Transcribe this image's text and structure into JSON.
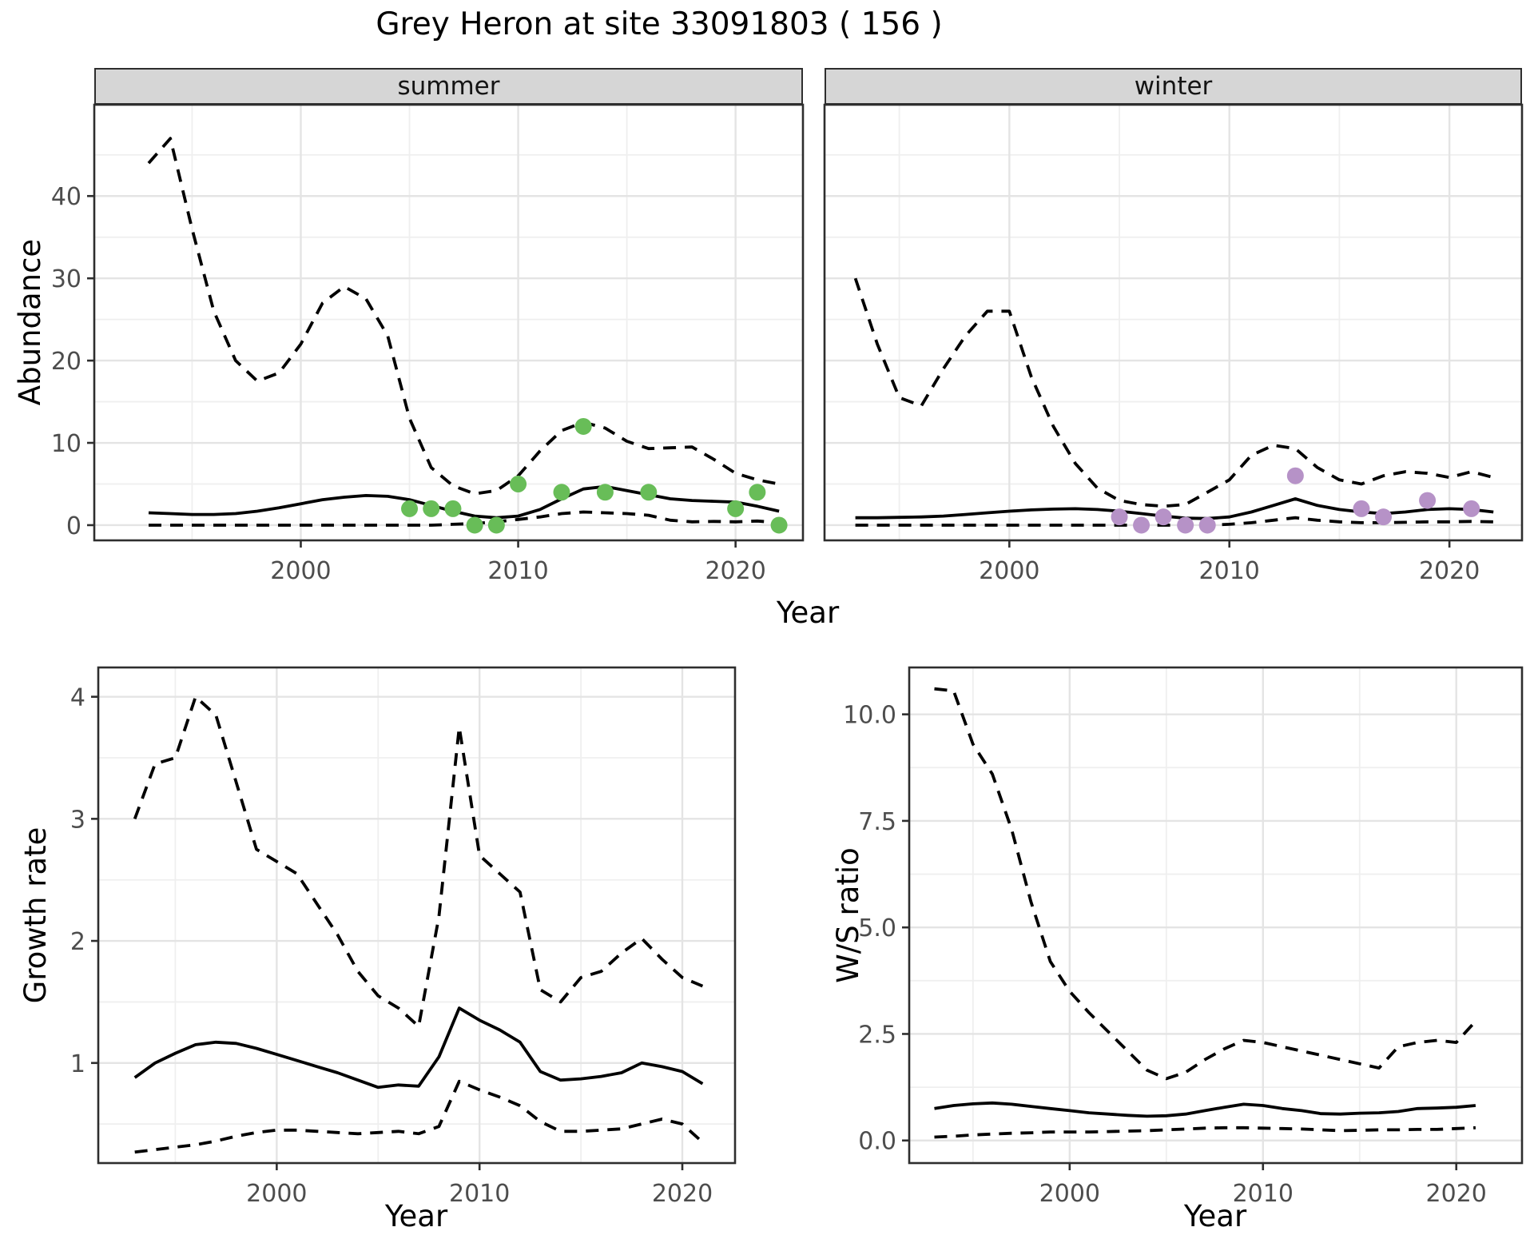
{
  "title": "Grey Heron at site 33091803 ( 156 )",
  "colors": {
    "summer_points": "#68bd58",
    "winter_points": "#b692c7",
    "line": "#000000",
    "grid_major": "#e4e4e4",
    "grid_minor": "#efefef",
    "panel_border": "#2e2e2e",
    "strip_bg": "#d6d6d6",
    "tick_text": "#4d4d4d"
  },
  "chart_data": [
    {
      "type": "line",
      "panel": "abundance-summer",
      "facet": "summer",
      "ylabel": "Abundance",
      "xlabel": "Year",
      "x": [
        1993,
        1994,
        1995,
        1996,
        1997,
        1998,
        1999,
        2000,
        2001,
        2002,
        2003,
        2004,
        2005,
        2006,
        2007,
        2008,
        2009,
        2010,
        2011,
        2012,
        2013,
        2014,
        2015,
        2016,
        2017,
        2018,
        2019,
        2020,
        2021,
        2022
      ],
      "series": [
        {
          "name": "upper-ci",
          "style": "dashed",
          "values": [
            44,
            47,
            36,
            26,
            20,
            17.5,
            18.5,
            22,
            27,
            29,
            27.5,
            23,
            13,
            7,
            4.8,
            3.8,
            4.2,
            6,
            9,
            11.5,
            12.5,
            11.8,
            10.2,
            9.3,
            9.4,
            9.5,
            8,
            6.3,
            5.5,
            5
          ]
        },
        {
          "name": "fit",
          "style": "solid",
          "values": [
            1.5,
            1.4,
            1.3,
            1.3,
            1.4,
            1.7,
            2.1,
            2.6,
            3.1,
            3.4,
            3.6,
            3.5,
            3.1,
            2.4,
            1.7,
            1.1,
            0.9,
            1.1,
            1.9,
            3.2,
            4.4,
            4.7,
            4.2,
            3.7,
            3.2,
            3.0,
            2.9,
            2.8,
            2.3,
            1.7
          ]
        },
        {
          "name": "lower-ci",
          "style": "dashed",
          "values": [
            0,
            0,
            0,
            0,
            0,
            0,
            0,
            0,
            0,
            0,
            0,
            0,
            0,
            0,
            0.1,
            0.2,
            0.4,
            0.7,
            1.0,
            1.4,
            1.6,
            1.5,
            1.4,
            1.2,
            0.6,
            0.4,
            0.45,
            0.4,
            0.5,
            0.3
          ]
        }
      ],
      "points": {
        "name": "observed-counts",
        "color_key": "summer_points",
        "x": [
          2005,
          2006,
          2007,
          2008,
          2009,
          2010,
          2012,
          2013,
          2014,
          2016,
          2020,
          2021,
          2022
        ],
        "y": [
          2,
          2,
          2,
          0,
          0,
          5,
          4,
          12,
          4,
          4,
          2,
          4,
          0
        ]
      },
      "xlim": [
        1990.5,
        2023.1
      ],
      "ylim": [
        -1.85,
        51.1
      ],
      "x_ticks": {
        "values": [
          2000,
          2010,
          2020
        ],
        "labels": [
          "2000",
          "2010",
          "2020"
        ]
      },
      "x_minor": [
        1995,
        2005,
        2015
      ],
      "y_ticks": {
        "values": [
          0,
          10,
          20,
          30,
          40
        ],
        "labels": [
          "0",
          "10",
          "20",
          "30",
          "40"
        ]
      },
      "y_minor": [
        5,
        15,
        25,
        35,
        45
      ]
    },
    {
      "type": "line",
      "panel": "abundance-winter",
      "facet": "winter",
      "ylabel": "Abundance",
      "xlabel": "Year",
      "x": [
        1993,
        1994,
        1995,
        1996,
        1997,
        1998,
        1999,
        2000,
        2001,
        2002,
        2003,
        2004,
        2005,
        2006,
        2007,
        2008,
        2009,
        2010,
        2011,
        2012,
        2013,
        2014,
        2015,
        2016,
        2017,
        2018,
        2019,
        2020,
        2021,
        2022
      ],
      "series": [
        {
          "name": "upper-ci",
          "style": "dashed",
          "values": [
            30,
            22,
            15.5,
            14.5,
            19,
            23,
            26,
            26,
            18,
            12,
            7.5,
            4.5,
            3,
            2.5,
            2.3,
            2.5,
            4,
            5.5,
            8.5,
            9.7,
            9.3,
            7,
            5.5,
            5,
            6,
            6.5,
            6.3,
            5.8,
            6.5,
            5.8
          ]
        },
        {
          "name": "fit",
          "style": "solid",
          "values": [
            0.9,
            0.9,
            0.95,
            1.0,
            1.1,
            1.3,
            1.5,
            1.7,
            1.85,
            1.95,
            2.0,
            1.9,
            1.7,
            1.4,
            1.1,
            0.85,
            0.8,
            1.0,
            1.6,
            2.4,
            3.2,
            2.4,
            1.9,
            1.6,
            1.4,
            1.6,
            1.9,
            2.0,
            1.9,
            1.6
          ]
        },
        {
          "name": "lower-ci",
          "style": "dashed",
          "values": [
            0,
            0,
            0,
            0,
            0,
            0,
            0,
            0,
            0,
            0,
            0,
            0,
            0,
            0,
            0,
            0,
            0,
            0.1,
            0.3,
            0.6,
            0.9,
            0.6,
            0.4,
            0.3,
            0.3,
            0.35,
            0.4,
            0.4,
            0.45,
            0.4
          ]
        }
      ],
      "points": {
        "name": "observed-counts",
        "color_key": "winter_points",
        "x": [
          2005,
          2006,
          2007,
          2008,
          2009,
          2013,
          2016,
          2017,
          2019,
          2021
        ],
        "y": [
          1,
          0,
          1,
          0,
          0,
          6,
          2,
          1,
          3,
          2
        ]
      },
      "xlim": [
        1991.6,
        2023.3
      ],
      "ylim": [
        -1.85,
        51.1
      ],
      "x_ticks": {
        "values": [
          2000,
          2010,
          2020
        ],
        "labels": [
          "2000",
          "2010",
          "2020"
        ]
      },
      "x_minor": [
        1995,
        2005,
        2015
      ],
      "y_ticks": {
        "values": [
          0,
          10,
          20,
          30,
          40
        ],
        "labels": [
          "0",
          "10",
          "20",
          "30",
          "40"
        ]
      },
      "y_minor": [
        5,
        15,
        25,
        35,
        45
      ]
    },
    {
      "type": "line",
      "panel": "growth-rate",
      "facet": "",
      "ylabel": "Growth rate",
      "xlabel": "Year",
      "x": [
        1993,
        1994,
        1995,
        1996,
        1997,
        1998,
        1999,
        2000,
        2001,
        2002,
        2003,
        2004,
        2005,
        2006,
        2007,
        2008,
        2009,
        2010,
        2011,
        2012,
        2013,
        2014,
        2015,
        2016,
        2017,
        2018,
        2019,
        2020,
        2021
      ],
      "series": [
        {
          "name": "upper-ci",
          "style": "dashed",
          "values": [
            3.0,
            3.45,
            3.5,
            4.0,
            3.85,
            3.3,
            2.75,
            2.65,
            2.55,
            2.3,
            2.05,
            1.75,
            1.55,
            1.45,
            1.3,
            2.2,
            3.75,
            2.7,
            2.55,
            2.4,
            1.6,
            1.5,
            1.7,
            1.75,
            1.9,
            2.02,
            1.85,
            1.7,
            1.63
          ]
        },
        {
          "name": "fit",
          "style": "solid",
          "values": [
            0.88,
            1.0,
            1.08,
            1.15,
            1.17,
            1.16,
            1.12,
            1.07,
            1.02,
            0.97,
            0.92,
            0.86,
            0.8,
            0.82,
            0.81,
            1.05,
            1.45,
            1.35,
            1.27,
            1.17,
            0.93,
            0.86,
            0.87,
            0.89,
            0.92,
            1.0,
            0.97,
            0.93,
            0.83
          ]
        },
        {
          "name": "lower-ci",
          "style": "dashed",
          "values": [
            0.27,
            0.29,
            0.31,
            0.33,
            0.36,
            0.4,
            0.43,
            0.45,
            0.45,
            0.44,
            0.43,
            0.42,
            0.43,
            0.44,
            0.42,
            0.48,
            0.85,
            0.78,
            0.72,
            0.65,
            0.52,
            0.44,
            0.44,
            0.45,
            0.46,
            0.5,
            0.54,
            0.5,
            0.35
          ]
        }
      ],
      "points": null,
      "xlim": [
        1991.2,
        2022.6
      ],
      "ylim": [
        0.18,
        4.24
      ],
      "x_ticks": {
        "values": [
          2000,
          2010,
          2020
        ],
        "labels": [
          "2000",
          "2010",
          "2020"
        ]
      },
      "x_minor": [
        1995,
        2005,
        2015
      ],
      "y_ticks": {
        "values": [
          1,
          2,
          3,
          4
        ],
        "labels": [
          "1",
          "2",
          "3",
          "4"
        ]
      },
      "y_minor": [
        0.5,
        1.5,
        2.5,
        3.5
      ]
    },
    {
      "type": "line",
      "panel": "ws-ratio",
      "facet": "",
      "ylabel": "W/S ratio",
      "xlabel": "Year",
      "x": [
        1993,
        1994,
        1995,
        1996,
        1997,
        1998,
        1999,
        2000,
        2001,
        2002,
        2003,
        2004,
        2005,
        2006,
        2007,
        2008,
        2009,
        2010,
        2011,
        2012,
        2013,
        2014,
        2015,
        2016,
        2017,
        2018,
        2019,
        2020,
        2021
      ],
      "series": [
        {
          "name": "upper-ci",
          "style": "dashed",
          "values": [
            10.6,
            10.55,
            9.3,
            8.6,
            7.3,
            5.6,
            4.2,
            3.5,
            3.0,
            2.55,
            2.1,
            1.65,
            1.45,
            1.6,
            1.9,
            2.15,
            2.35,
            2.3,
            2.2,
            2.1,
            2.0,
            1.9,
            1.8,
            1.7,
            2.2,
            2.3,
            2.35,
            2.3,
            2.8
          ]
        },
        {
          "name": "fit",
          "style": "solid",
          "values": [
            0.75,
            0.82,
            0.86,
            0.88,
            0.85,
            0.8,
            0.75,
            0.7,
            0.65,
            0.62,
            0.59,
            0.57,
            0.58,
            0.62,
            0.7,
            0.78,
            0.85,
            0.82,
            0.75,
            0.7,
            0.63,
            0.62,
            0.64,
            0.65,
            0.68,
            0.75,
            0.76,
            0.78,
            0.82
          ]
        },
        {
          "name": "lower-ci",
          "style": "dashed",
          "values": [
            0.08,
            0.1,
            0.13,
            0.15,
            0.17,
            0.18,
            0.2,
            0.2,
            0.2,
            0.21,
            0.22,
            0.23,
            0.25,
            0.27,
            0.29,
            0.3,
            0.3,
            0.29,
            0.28,
            0.27,
            0.25,
            0.23,
            0.24,
            0.25,
            0.25,
            0.26,
            0.26,
            0.28,
            0.3
          ]
        }
      ],
      "points": null,
      "xlim": [
        1991.7,
        2023.4
      ],
      "ylim": [
        -0.53,
        11.1
      ],
      "x_ticks": {
        "values": [
          2000,
          2010,
          2020
        ],
        "labels": [
          "2000",
          "2010",
          "2020"
        ]
      },
      "x_minor": [
        1995,
        2005,
        2015
      ],
      "y_ticks": {
        "values": [
          0,
          2.5,
          5,
          7.5,
          10
        ],
        "labels": [
          "0.0",
          "2.5",
          "5.0",
          "7.5",
          "10.0"
        ]
      },
      "y_minor": [
        1.25,
        3.75,
        6.25,
        8.75
      ]
    }
  ]
}
